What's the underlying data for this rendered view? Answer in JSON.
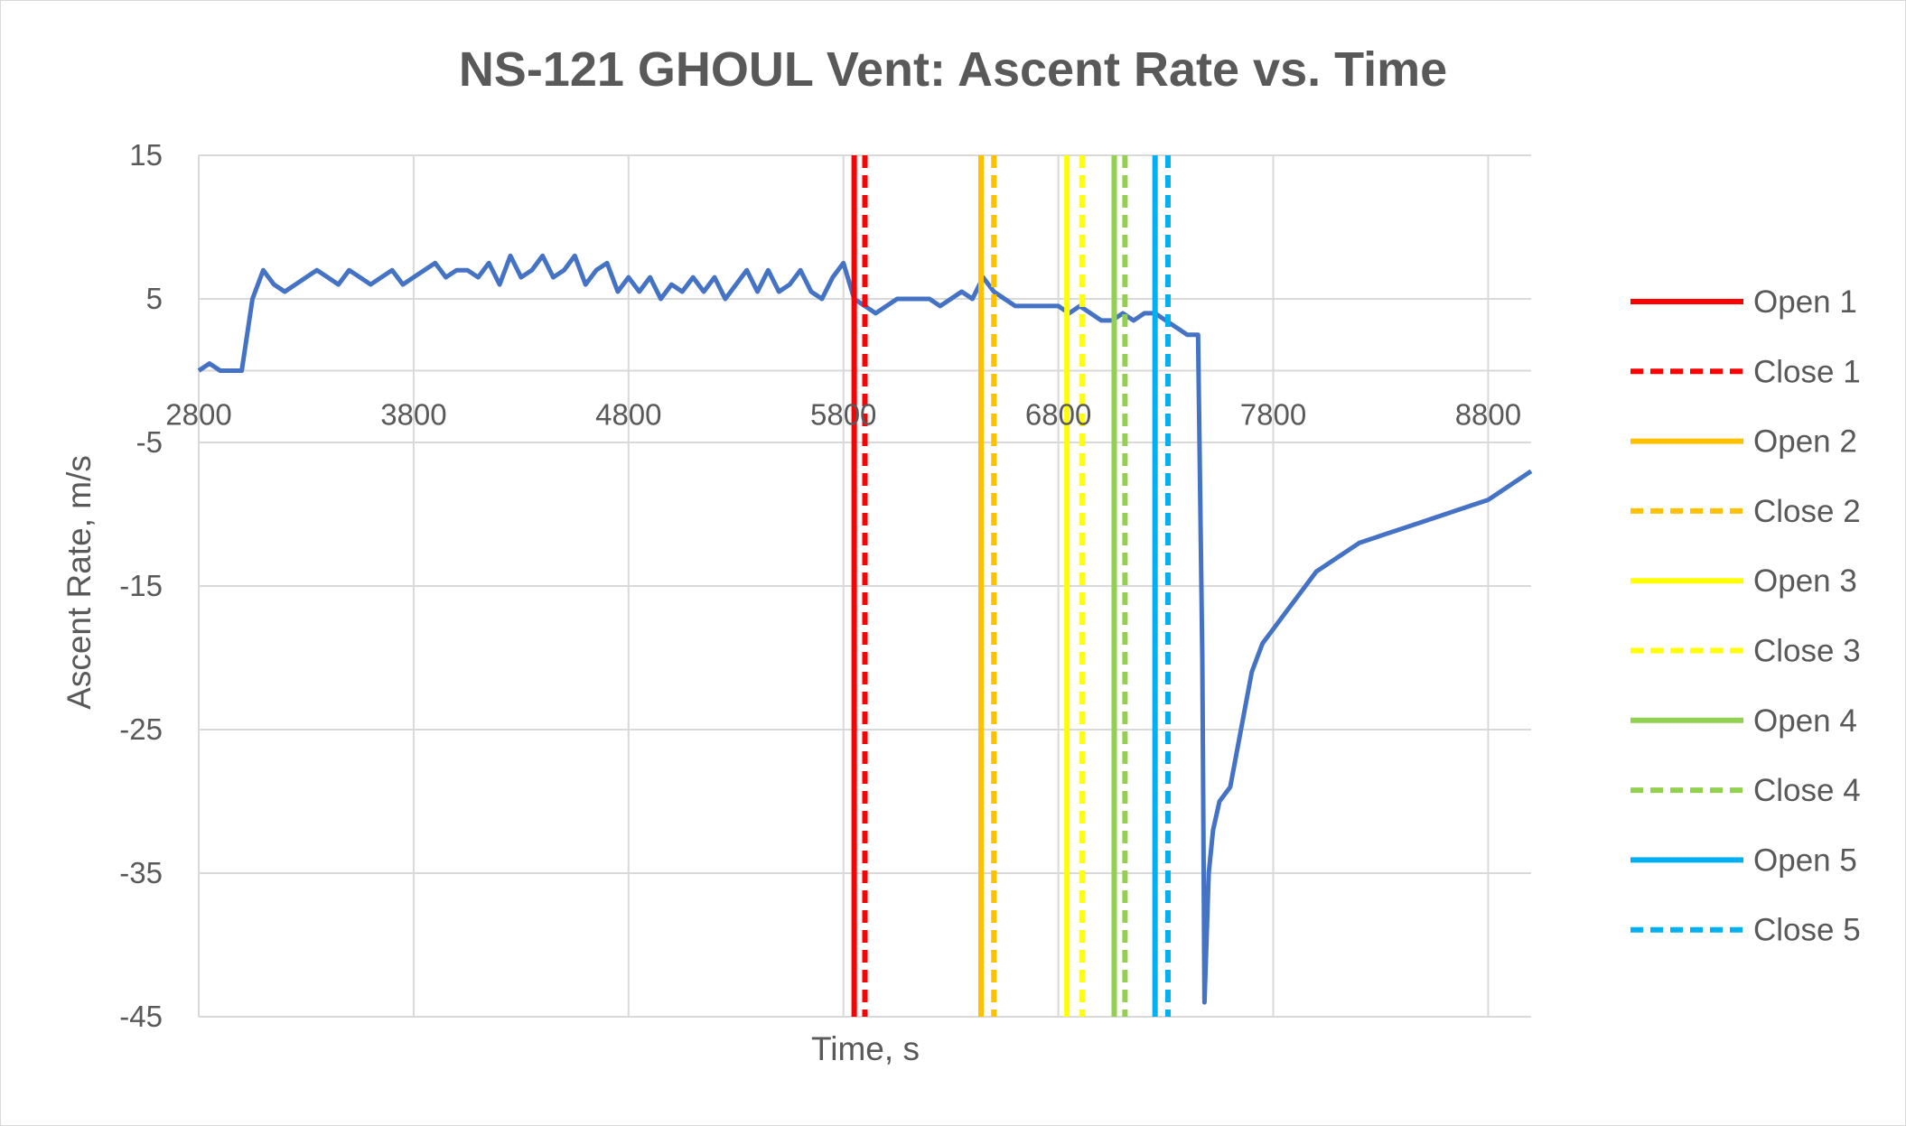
{
  "chart_data": {
    "type": "line",
    "title": "NS-121 GHOUL Vent: Ascent Rate vs. Time",
    "xlabel": "Time, s",
    "ylabel": "Ascent Rate, m/s",
    "xlim": [
      2800,
      9000
    ],
    "ylim": [
      -45,
      15
    ],
    "x_ticks": [
      2800,
      3800,
      4800,
      5800,
      6800,
      7800,
      8800
    ],
    "x_tick_labels": [
      "2800",
      "3800",
      "4800",
      "5800",
      "6800",
      "7800",
      "8800"
    ],
    "y_ticks": [
      15,
      5,
      -5,
      -15,
      -25,
      -35,
      -45
    ],
    "y_tick_labels": [
      "15",
      "5",
      "-5",
      "-15",
      "-25",
      "-35",
      "-45"
    ],
    "x_gridlines": [
      2800,
      3800,
      4800,
      5800,
      6800,
      7800,
      8800
    ],
    "y_gridlines": [
      15,
      5,
      0,
      -5,
      -15,
      -25,
      -35,
      -45
    ],
    "grid": true,
    "legend_position": "right",
    "series": [
      {
        "name": "",
        "color": "#4472c4",
        "style": "solid",
        "x": [
          2800,
          2850,
          2900,
          2950,
          3000,
          3050,
          3100,
          3150,
          3200,
          3250,
          3300,
          3350,
          3400,
          3450,
          3500,
          3550,
          3600,
          3650,
          3700,
          3750,
          3800,
          3850,
          3900,
          3950,
          4000,
          4050,
          4100,
          4150,
          4200,
          4250,
          4300,
          4350,
          4400,
          4450,
          4500,
          4550,
          4600,
          4650,
          4700,
          4750,
          4800,
          4850,
          4900,
          4950,
          5000,
          5050,
          5100,
          5150,
          5200,
          5250,
          5300,
          5350,
          5400,
          5450,
          5500,
          5550,
          5600,
          5650,
          5700,
          5750,
          5800,
          5850,
          5900,
          5950,
          6000,
          6050,
          6100,
          6150,
          6200,
          6250,
          6300,
          6350,
          6400,
          6450,
          6500,
          6550,
          6600,
          6650,
          6700,
          6750,
          6800,
          6850,
          6900,
          6950,
          7000,
          7050,
          7100,
          7150,
          7200,
          7250,
          7300,
          7350,
          7400,
          7450,
          7470,
          7480,
          7500,
          7520,
          7550,
          7600,
          7650,
          7700,
          7750,
          7800,
          7850,
          7900,
          7950,
          8000,
          8100,
          8200,
          8300,
          8400,
          8500,
          8600,
          8700,
          8800,
          8900,
          9000
        ],
        "y": [
          0,
          0.5,
          0,
          0,
          0,
          5,
          7,
          6,
          5.5,
          6,
          6.5,
          7,
          6.5,
          6,
          7,
          6.5,
          6,
          6.5,
          7,
          6,
          6.5,
          7,
          7.5,
          6.5,
          7,
          7,
          6.5,
          7.5,
          6,
          8,
          6.5,
          7,
          8,
          6.5,
          7,
          8,
          6,
          7,
          7.5,
          5.5,
          6.5,
          5.5,
          6.5,
          5,
          6,
          5.5,
          6.5,
          5.5,
          6.5,
          5,
          6,
          7,
          5.5,
          7,
          5.5,
          6,
          7,
          5.5,
          5,
          6.5,
          7.5,
          5,
          4.5,
          4,
          4.5,
          5,
          5,
          5,
          5,
          4.5,
          5,
          5.5,
          5,
          6.5,
          5.5,
          5,
          4.5,
          4.5,
          4.5,
          4.5,
          4.5,
          4,
          4.5,
          4,
          3.5,
          3.5,
          4,
          3.5,
          4,
          4,
          3.5,
          3,
          2.5,
          2.5,
          -20,
          -44,
          -35,
          -32,
          -30,
          -29,
          -25,
          -21,
          -19,
          -18,
          -17,
          -16,
          -15,
          -14,
          -13,
          -12,
          -11.5,
          -11,
          -10.5,
          -10,
          -9.5,
          -9,
          -8,
          -7
        ]
      }
    ],
    "vent_lines": [
      {
        "name": "Open 1",
        "x": 5850,
        "color": "#ff0000",
        "style": "solid"
      },
      {
        "name": "Close 1",
        "x": 5900,
        "color": "#ff0000",
        "style": "dashed"
      },
      {
        "name": "Open 2",
        "x": 6440,
        "color": "#ffc000",
        "style": "solid"
      },
      {
        "name": "Close 2",
        "x": 6500,
        "color": "#ffc000",
        "style": "dashed"
      },
      {
        "name": "Open 3",
        "x": 6840,
        "color": "#ffff00",
        "style": "solid"
      },
      {
        "name": "Close 3",
        "x": 6910,
        "color": "#ffff00",
        "style": "dashed"
      },
      {
        "name": "Open 4",
        "x": 7060,
        "color": "#92d050",
        "style": "solid"
      },
      {
        "name": "Close 4",
        "x": 7110,
        "color": "#92d050",
        "style": "dashed"
      },
      {
        "name": "Open 5",
        "x": 7250,
        "color": "#00b0f0",
        "style": "solid"
      },
      {
        "name": "Close 5",
        "x": 7310,
        "color": "#00b0f0",
        "style": "dashed"
      }
    ]
  }
}
